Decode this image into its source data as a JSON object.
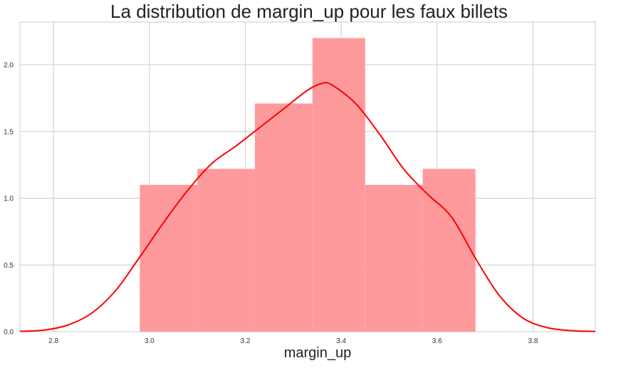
{
  "chart_data": {
    "type": "bar",
    "title": "La distribution de margin_up pour les faux billets",
    "xlabel": "margin_up",
    "ylabel": "",
    "xlim": [
      2.73,
      3.93
    ],
    "ylim": [
      0,
      2.32
    ],
    "xticks": [
      2.8,
      3.0,
      3.2,
      3.4,
      3.6,
      3.8
    ],
    "xtick_labels": [
      "2.8",
      "3.0",
      "3.2",
      "3.4",
      "3.6",
      "3.8"
    ],
    "yticks": [
      0.0,
      0.5,
      1.0,
      1.5,
      2.0
    ],
    "ytick_labels": [
      "0.0",
      "0.5",
      "1.0",
      "1.5",
      "2.0"
    ],
    "grid": true,
    "histogram": {
      "bins": [
        {
          "x0": 2.98,
          "x1": 3.1,
          "density": 1.1
        },
        {
          "x0": 3.1,
          "x1": 3.22,
          "density": 1.22
        },
        {
          "x0": 3.22,
          "x1": 3.34,
          "density": 1.71
        },
        {
          "x0": 3.34,
          "x1": 3.45,
          "density": 2.2
        },
        {
          "x0": 3.45,
          "x1": 3.57,
          "density": 1.1
        },
        {
          "x0": 3.57,
          "x1": 3.68,
          "density": 1.22
        }
      ],
      "color": "#ff9a9c"
    },
    "kde": {
      "color": "#ff0000",
      "x": [
        2.73,
        2.78,
        2.83,
        2.88,
        2.93,
        2.98,
        3.03,
        3.08,
        3.13,
        3.18,
        3.23,
        3.28,
        3.33,
        3.36,
        3.38,
        3.43,
        3.48,
        3.53,
        3.58,
        3.63,
        3.68,
        3.73,
        3.78,
        3.83,
        3.88,
        3.93
      ],
      "y": [
        0.003,
        0.012,
        0.05,
        0.14,
        0.31,
        0.56,
        0.82,
        1.06,
        1.26,
        1.39,
        1.53,
        1.67,
        1.81,
        1.86,
        1.85,
        1.71,
        1.48,
        1.22,
        1.03,
        0.86,
        0.55,
        0.27,
        0.1,
        0.03,
        0.008,
        0.002
      ]
    }
  }
}
